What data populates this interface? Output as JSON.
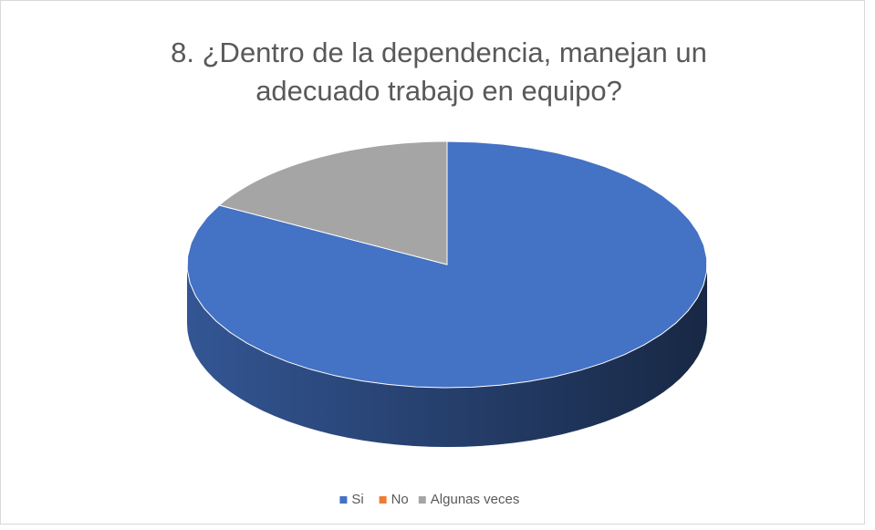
{
  "chart_data": {
    "type": "pie",
    "title": "8. ¿Dentro de la dependencia, manejan un adecuado trabajo en equipo?",
    "categories": [
      "Si",
      "No",
      "Algunas veces"
    ],
    "values": [
      83,
      0,
      17
    ],
    "colors": [
      "#4472c4",
      "#ed7d31",
      "#a5a5a5"
    ],
    "legend": "bottom"
  }
}
